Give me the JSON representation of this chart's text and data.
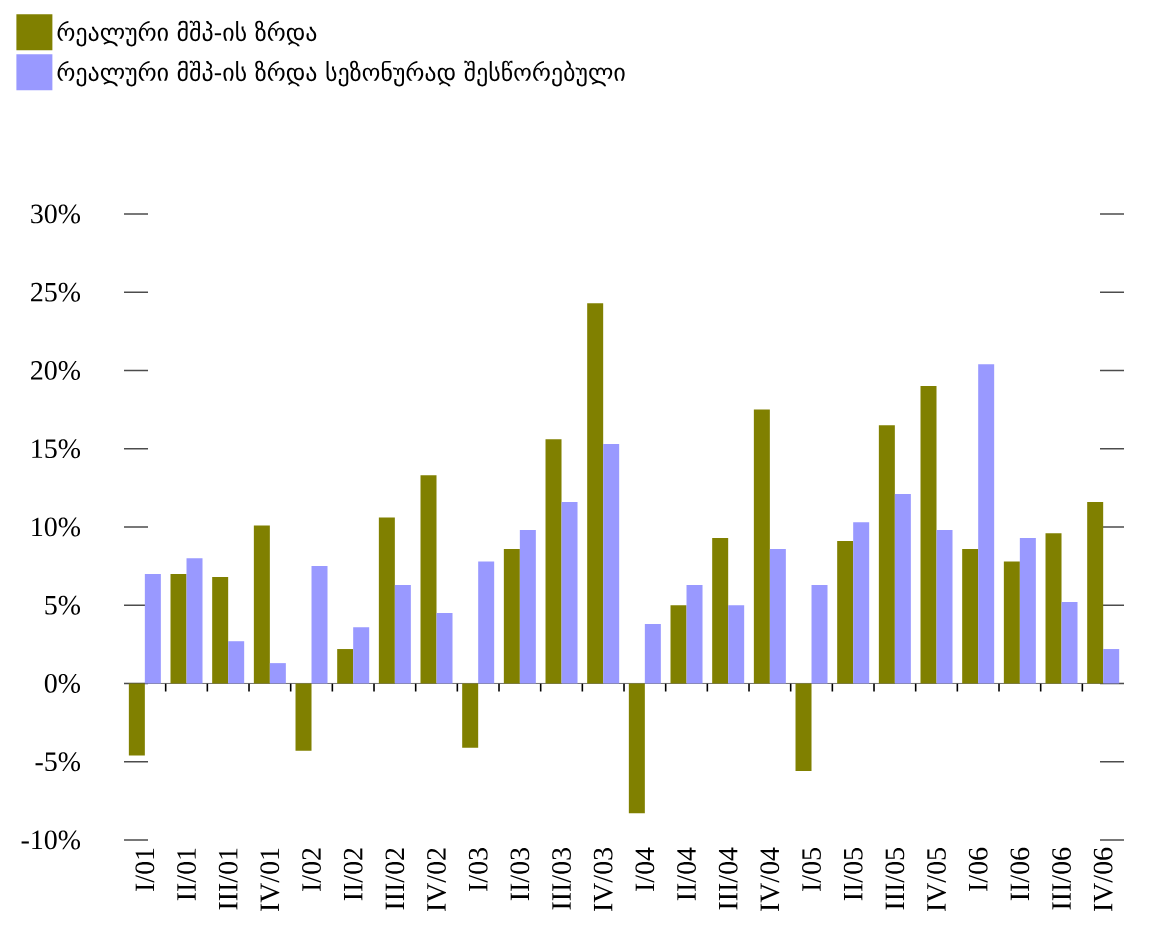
{
  "chart_data": {
    "type": "bar",
    "categories": [
      "I/01",
      "II/01",
      "III/01",
      "IV/01",
      "I/02",
      "II/02",
      "III/02",
      "IV/02",
      "I/03",
      "II/03",
      "III/03",
      "IV/03",
      "I/04",
      "II/04",
      "III/04",
      "IV/04",
      "I/05",
      "II/05",
      "III/05",
      "IV/05",
      "I/06",
      "II/06",
      "III/06",
      "IV/06"
    ],
    "series": [
      {
        "name": "რეალური მშპ-ის ზრდა",
        "color": "#808000",
        "values": [
          -4.6,
          7.0,
          6.8,
          10.1,
          -4.3,
          2.2,
          10.6,
          13.3,
          -4.1,
          8.6,
          15.6,
          24.3,
          -8.3,
          5.0,
          9.3,
          17.5,
          -5.6,
          9.1,
          16.5,
          19.0,
          8.6,
          7.8,
          9.6,
          11.6
        ]
      },
      {
        "name": "რეალური მშპ-ის ზრდა სეზონურად შესწორებული",
        "color": "#9999ff",
        "values": [
          7.0,
          8.0,
          2.7,
          1.3,
          7.5,
          3.6,
          6.3,
          4.5,
          7.8,
          9.8,
          11.6,
          15.3,
          3.8,
          6.3,
          5.0,
          8.6,
          6.3,
          10.3,
          12.1,
          9.8,
          20.4,
          9.3,
          5.2,
          2.2
        ]
      }
    ],
    "ylim": [
      -10,
      30
    ],
    "yticks": [
      {
        "value": -10,
        "label": "-10%"
      },
      {
        "value": -5,
        "label": "-5%"
      },
      {
        "value": 0,
        "label": "0%"
      },
      {
        "value": 5,
        "label": "5%"
      },
      {
        "value": 10,
        "label": "10%"
      },
      {
        "value": 15,
        "label": "15%"
      },
      {
        "value": 20,
        "label": "20%"
      },
      {
        "value": 25,
        "label": "25%"
      },
      {
        "value": 30,
        "label": "30%"
      }
    ],
    "legend": "top left"
  }
}
